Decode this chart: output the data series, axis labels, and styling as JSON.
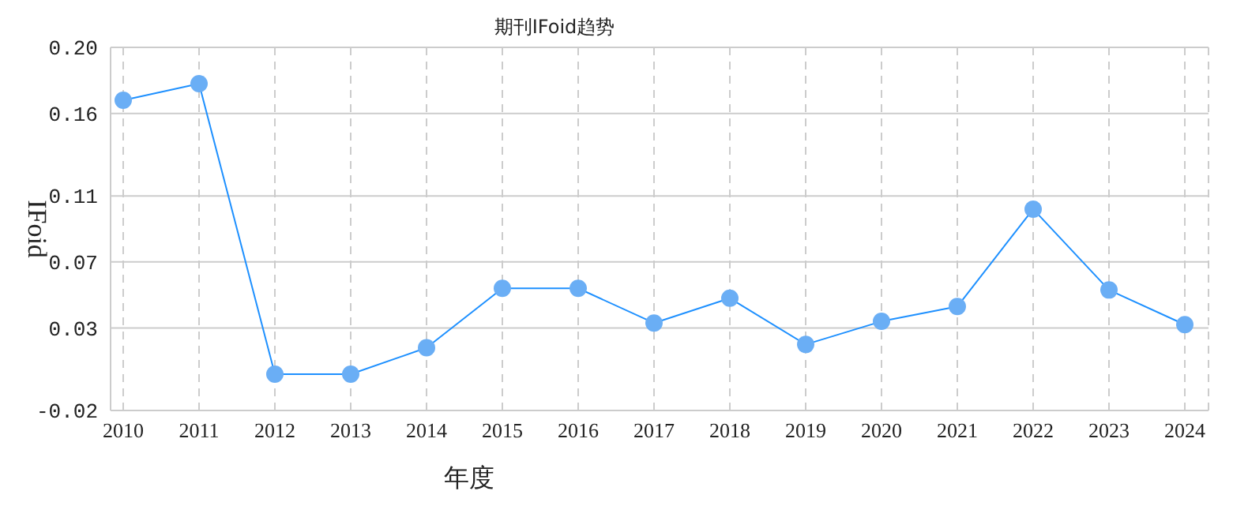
{
  "chart_data": {
    "type": "line",
    "title": "期刊IFoid趋势",
    "xlabel": "年度",
    "ylabel": "IFoid",
    "categories": [
      "2010",
      "2011",
      "2012",
      "2013",
      "2014",
      "2015",
      "2016",
      "2017",
      "2018",
      "2019",
      "2020",
      "2021",
      "2022",
      "2023",
      "2024"
    ],
    "series": [
      {
        "color": "#1e90ff",
        "values": [
          0.168,
          0.178,
          0.002,
          0.002,
          0.018,
          0.054,
          0.054,
          0.033,
          0.048,
          0.02,
          0.034,
          0.043,
          0.102,
          0.053,
          0.032
        ]
      }
    ],
    "ylim": [
      -0.02,
      0.2
    ],
    "yticks": [
      {
        "value": -0.02,
        "label": "-0.02"
      },
      {
        "value": 0.03,
        "label": "0.03"
      },
      {
        "value": 0.07,
        "label": "0.07"
      },
      {
        "value": 0.11,
        "label": "0.11"
      },
      {
        "value": 0.16,
        "label": "0.16"
      },
      {
        "value": 0.2,
        "label": "0.20"
      }
    ],
    "grid": true,
    "marker": "circle",
    "line_style": "solid",
    "legend": false
  }
}
